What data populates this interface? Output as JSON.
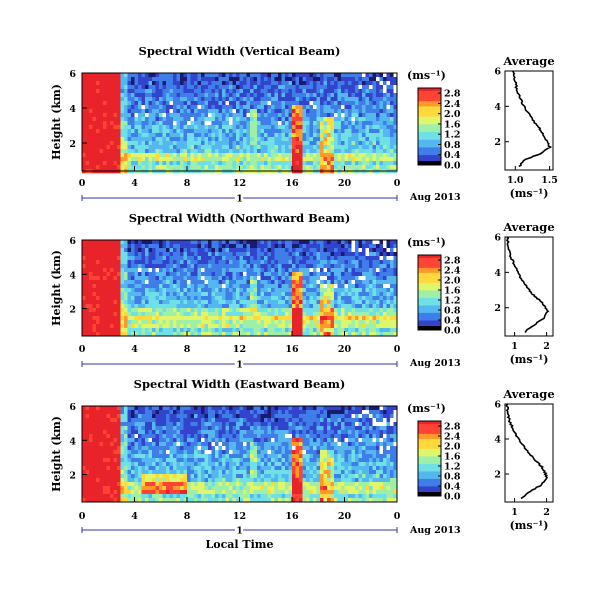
{
  "colors": {
    "scale": [
      "#1a1a6e",
      "#3344cc",
      "#3f7ee8",
      "#55b7f0",
      "#6fe0e6",
      "#9ef0a8",
      "#dff56a",
      "#ffd83a",
      "#ff9a2a",
      "#ff4433",
      "#e8242a"
    ],
    "text": "#000000",
    "axis_line": "#3333aa"
  },
  "colorbar": {
    "unit_label": "(ms⁻¹)",
    "ticks": [
      "0.0",
      "0.4",
      "0.8",
      "1.2",
      "1.6",
      "2.0",
      "2.4",
      "2.8"
    ],
    "max": 3.0
  },
  "heatmap_axes": {
    "ylabel": "Height (km)",
    "xlabel": "Local Time",
    "xticks": [
      "0",
      "4",
      "8",
      "12",
      "16",
      "20",
      "0"
    ],
    "yticks": [
      "2",
      "4",
      "6"
    ],
    "day_label": "1",
    "date_label": "Aug 2013"
  },
  "profile_axes": {
    "title": "Average",
    "xlabel": "(ms⁻¹)",
    "yticks": [
      "2",
      "4",
      "6"
    ]
  },
  "chart_data": [
    {
      "type": "heatmap",
      "title": "Spectral Width (Vertical Beam)",
      "xlabel": "",
      "ylabel": "Height (km)",
      "x_range_hours": [
        0,
        24
      ],
      "y_range_km": [
        0.4,
        6.0
      ],
      "color_range": [
        0.0,
        3.0
      ],
      "colorbar_ticks": [
        "0.0",
        "0.4",
        "0.8",
        "1.2",
        "1.6",
        "2.0",
        "2.4",
        "2.8"
      ]
    },
    {
      "type": "line",
      "title": "Average",
      "xlabel": "(ms⁻¹)",
      "xticks": [
        "1.0",
        "1.5"
      ],
      "xlim": [
        0.85,
        1.55
      ],
      "ylim": [
        0.4,
        6.0
      ],
      "x": [
        1.05,
        1.15,
        1.35,
        1.5,
        1.46,
        1.42,
        1.36,
        1.3,
        1.23,
        1.16,
        1.1,
        1.06,
        1.02,
        1.0,
        0.98,
        0.97
      ],
      "y": [
        0.6,
        1.0,
        1.3,
        1.7,
        2.0,
        2.3,
        2.7,
        3.0,
        3.4,
        3.8,
        4.2,
        4.6,
        5.0,
        5.4,
        5.8,
        6.0
      ]
    },
    {
      "type": "heatmap",
      "title": "Spectral Width (Northward Beam)",
      "xlabel": "",
      "ylabel": "Height (km)",
      "x_range_hours": [
        0,
        24
      ],
      "y_range_km": [
        0.4,
        6.0
      ],
      "color_range": [
        0.0,
        3.0
      ],
      "colorbar_ticks": [
        "0.0",
        "0.4",
        "0.8",
        "1.2",
        "1.6",
        "2.0",
        "2.4",
        "2.8"
      ]
    },
    {
      "type": "line",
      "title": "Average",
      "xlabel": "(ms⁻¹)",
      "xticks": [
        "1",
        "2"
      ],
      "xlim": [
        0.7,
        2.2
      ],
      "ylim": [
        0.4,
        6.0
      ],
      "x": [
        1.3,
        1.6,
        1.9,
        2.05,
        1.95,
        1.8,
        1.6,
        1.45,
        1.3,
        1.15,
        1.05,
        0.95,
        0.85,
        0.8,
        0.78,
        0.77
      ],
      "y": [
        0.6,
        1.0,
        1.4,
        1.8,
        2.1,
        2.4,
        2.7,
        3.0,
        3.4,
        3.8,
        4.2,
        4.6,
        5.0,
        5.4,
        5.8,
        6.0
      ]
    },
    {
      "type": "heatmap",
      "title": "Spectral Width (Eastward Beam)",
      "xlabel": "Local Time",
      "ylabel": "Height (km)",
      "x_range_hours": [
        0,
        24
      ],
      "y_range_km": [
        0.4,
        6.0
      ],
      "color_range": [
        0.0,
        3.0
      ],
      "colorbar_ticks": [
        "0.0",
        "0.4",
        "0.8",
        "1.2",
        "1.6",
        "2.0",
        "2.4",
        "2.8"
      ]
    },
    {
      "type": "line",
      "title": "Average",
      "xlabel": "(ms⁻¹)",
      "xticks": [
        "1",
        "2"
      ],
      "xlim": [
        0.7,
        2.2
      ],
      "ylim": [
        0.4,
        6.0
      ],
      "x": [
        1.2,
        1.5,
        1.85,
        2.0,
        1.95,
        1.85,
        1.7,
        1.55,
        1.35,
        1.2,
        1.05,
        0.95,
        0.85,
        0.8,
        0.78,
        0.77
      ],
      "y": [
        0.6,
        1.0,
        1.4,
        1.8,
        2.1,
        2.4,
        2.7,
        3.0,
        3.4,
        3.8,
        4.2,
        4.6,
        5.0,
        5.4,
        5.8,
        6.0
      ]
    }
  ]
}
